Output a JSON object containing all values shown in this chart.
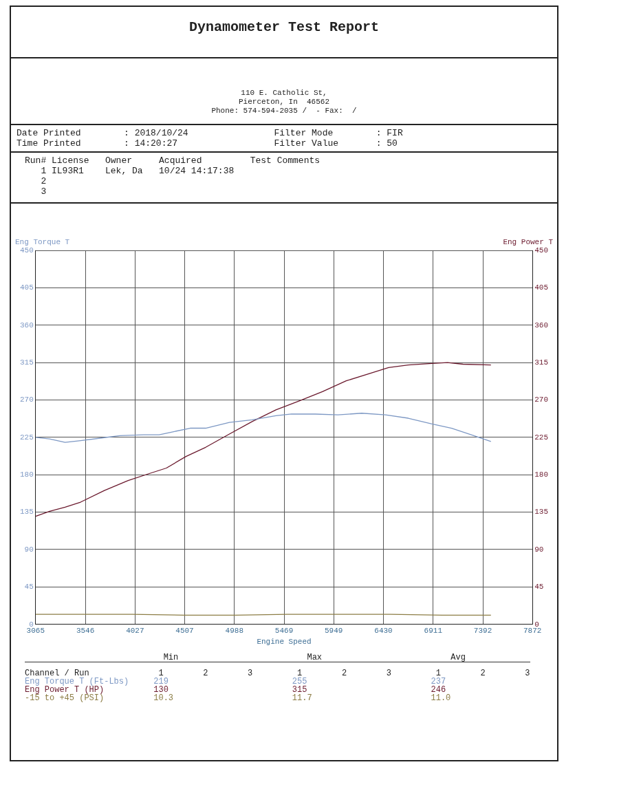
{
  "chart_data": {
    "type": "line",
    "title": "Dynamometer Test Report",
    "xlabel": "Engine Speed",
    "ylabel": "Eng Torque T",
    "y2label": "Eng Power T",
    "annotations": [
      "110 E. Catholic St,",
      "Pierceton, In  46562",
      "Phone: 574-594-2035 /  - Fax:  /",
      "Date Printed        : 2018/10/24                Filter Mode        : FIR",
      "Time Printed        : 14:20:27                  Filter Value       : 50",
      "Run# License   Owner     Acquired         Test Comments",
      "   1 IL93R1    Lek, Da   10/24 14:17:38",
      "   2",
      "   3",
      "                            Min                          Max                          Avg",
      "Channel / Run              1        2        3         1        2        3         1        2        3",
      "Eng Torque T (Ft-Lbs)     219                         255                         237",
      "Eng Power T (HP)          130                         315                         246",
      "-15 to +45 (PSI)          10.3                        11.7                        11.0"
    ],
    "xlim": [
      3065,
      7872
    ],
    "xticks": [
      3065,
      3546,
      4027,
      4507,
      4988,
      5469,
      5949,
      6430,
      6911,
      7392,
      7872
    ],
    "ylim": [
      0,
      450
    ],
    "yticks": [
      0,
      45,
      90,
      135,
      180,
      225,
      270,
      315,
      360,
      405,
      450
    ],
    "y2lim": [
      0,
      450
    ],
    "y2ticks": [
      0,
      45,
      90,
      135,
      180,
      225,
      270,
      315,
      360,
      405,
      450
    ],
    "grid": true,
    "legend": false,
    "marker": "none",
    "line_style": "solid",
    "series": [
      {
        "color": "#7d98c4",
        "x": [
          3065,
          3200,
          3350,
          3500,
          3690,
          3880,
          4110,
          4260,
          4370,
          4560,
          4710,
          4940,
          5160,
          5390,
          5540,
          5770,
          5990,
          6220,
          6450,
          6670,
          6900,
          7090,
          7280,
          7470
        ],
        "values": [
          225,
          223,
          219,
          221,
          224,
          227,
          228,
          228,
          231,
          236,
          236,
          243,
          246,
          251,
          253,
          253,
          252,
          254,
          252,
          248,
          241,
          236,
          228,
          220
        ]
      },
      {
        "color": "#6b1a2e",
        "axis": "y2",
        "x": [
          3065,
          3200,
          3350,
          3500,
          3730,
          3960,
          4180,
          4330,
          4520,
          4710,
          4940,
          5160,
          5390,
          5620,
          5840,
          6070,
          6300,
          6480,
          6670,
          6900,
          7050,
          7200,
          7470
        ],
        "values": [
          130,
          136,
          141,
          147,
          161,
          173,
          182,
          188,
          202,
          213,
          229,
          244,
          258,
          269,
          280,
          293,
          302,
          309,
          312,
          314,
          315,
          313,
          312
        ]
      },
      {
        "color": "#8c7d45",
        "x": [
          3065,
          4000,
          4500,
          5000,
          5500,
          6000,
          6500,
          7000,
          7470
        ],
        "values": [
          12,
          12,
          11,
          11,
          12,
          12,
          12,
          11,
          11
        ]
      }
    ]
  }
}
